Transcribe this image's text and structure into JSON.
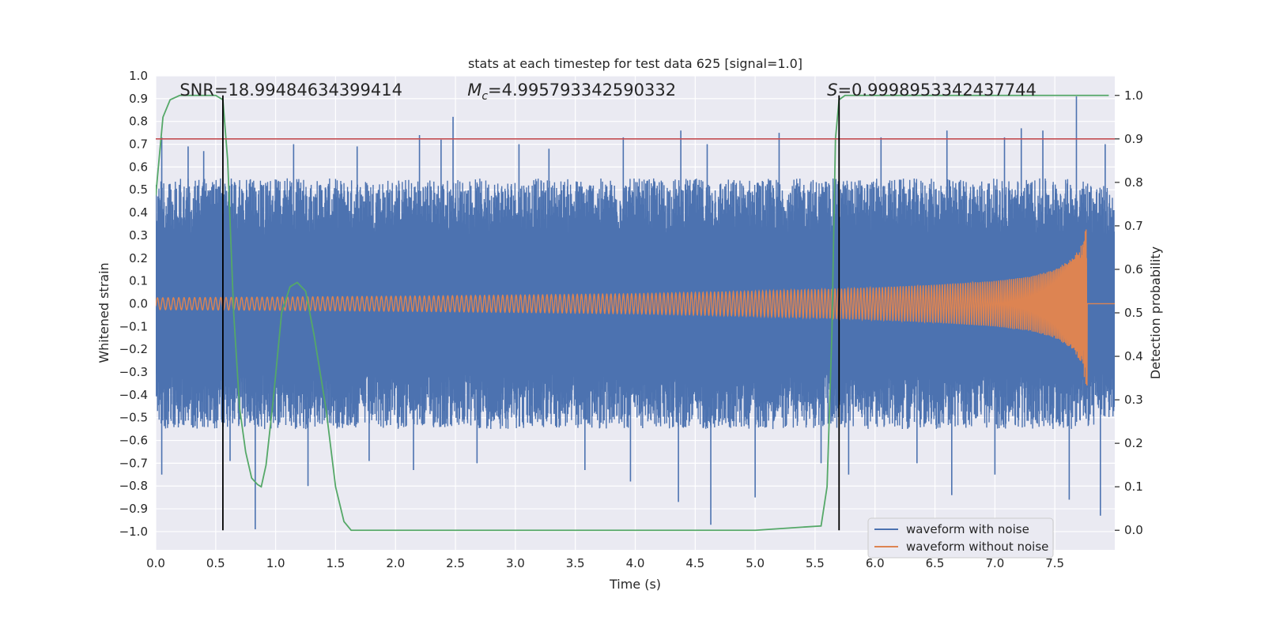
{
  "chart_data": {
    "type": "line",
    "title": "stats at each timestep for test data 625 [signal=1.0]",
    "xlabel": "Time (s)",
    "ylabel_left": "Whitened strain",
    "ylabel_right": "Detection probability",
    "xlim": [
      0.0,
      8.0
    ],
    "ylim_left": [
      -1.08,
      1.0
    ],
    "ylim_right": [
      -0.045,
      1.045
    ],
    "x_ticks": [
      "0.0",
      "0.5",
      "1.0",
      "1.5",
      "2.0",
      "2.5",
      "3.0",
      "3.5",
      "4.0",
      "4.5",
      "5.0",
      "5.5",
      "6.0",
      "6.5",
      "7.0",
      "7.5"
    ],
    "y_left_ticks": [
      "1.0",
      "0.9",
      "0.8",
      "0.7",
      "0.6",
      "0.5",
      "0.4",
      "0.3",
      "0.2",
      "0.1",
      "0.0",
      "−0.1",
      "−0.2",
      "−0.3",
      "−0.4",
      "−0.5",
      "−0.6",
      "−0.7",
      "−0.8",
      "−0.9",
      "−1.0"
    ],
    "y_right_ticks": [
      "1.0",
      "0.9",
      "0.8",
      "0.7",
      "0.6",
      "0.5",
      "0.4",
      "0.3",
      "0.2",
      "0.1",
      "0.0"
    ],
    "annotations": {
      "snr": "SNR=18.99484634399414",
      "mc_symbol": "M",
      "mc_sub": "c",
      "mc_value": "=4.995793342590332",
      "s_symbol": "S",
      "s_value": "=0.9998953342437744"
    },
    "threshold": 0.9,
    "vertical_lines_x": [
      0.56,
      5.7
    ],
    "signal_end_x": 7.77,
    "series": [
      {
        "name": "waveform with noise",
        "color": "#4c72b0",
        "axis": "left",
        "envelope_x": [
          0.0,
          1.0,
          2.0,
          3.0,
          4.0,
          5.0,
          6.0,
          7.0,
          7.5,
          7.77,
          8.0
        ],
        "envelope_low": [
          -0.55,
          -0.55,
          -0.55,
          -0.55,
          -0.55,
          -0.55,
          -0.55,
          -0.55,
          -0.55,
          -0.55,
          -0.5
        ],
        "envelope_high": [
          0.55,
          0.55,
          0.55,
          0.55,
          0.55,
          0.55,
          0.55,
          0.55,
          0.55,
          0.55,
          0.5
        ],
        "spikes_high": [
          [
            0.05,
            0.73
          ],
          [
            0.27,
            0.69
          ],
          [
            0.4,
            0.67
          ],
          [
            1.15,
            0.7
          ],
          [
            1.68,
            0.69
          ],
          [
            2.2,
            0.74
          ],
          [
            2.38,
            0.72
          ],
          [
            2.48,
            0.82
          ],
          [
            3.03,
            0.7
          ],
          [
            3.28,
            0.68
          ],
          [
            3.9,
            0.73
          ],
          [
            4.38,
            0.76
          ],
          [
            4.6,
            0.7
          ],
          [
            5.2,
            0.75
          ],
          [
            6.05,
            0.73
          ],
          [
            6.6,
            0.76
          ],
          [
            7.08,
            0.73
          ],
          [
            7.22,
            0.77
          ],
          [
            7.4,
            0.76
          ],
          [
            7.68,
            0.91
          ],
          [
            7.92,
            0.7
          ]
        ],
        "spikes_low": [
          [
            0.05,
            -0.75
          ],
          [
            0.62,
            -0.69
          ],
          [
            0.83,
            -0.99
          ],
          [
            1.27,
            -0.8
          ],
          [
            1.78,
            -0.69
          ],
          [
            2.15,
            -0.73
          ],
          [
            2.68,
            -0.7
          ],
          [
            3.58,
            -0.73
          ],
          [
            3.96,
            -0.78
          ],
          [
            4.36,
            -0.87
          ],
          [
            4.63,
            -0.97
          ],
          [
            5.0,
            -0.85
          ],
          [
            5.55,
            -0.7
          ],
          [
            5.78,
            -0.75
          ],
          [
            6.35,
            -0.7
          ],
          [
            6.64,
            -0.84
          ],
          [
            7.0,
            -0.75
          ],
          [
            7.62,
            -0.86
          ],
          [
            7.88,
            -0.93
          ]
        ]
      },
      {
        "name": "waveform without noise",
        "color": "#dd8452",
        "axis": "left",
        "chirp_tc": 7.77,
        "amplitude_x": [
          0.0,
          1.0,
          2.0,
          3.0,
          4.0,
          5.0,
          5.5,
          6.0,
          6.5,
          7.0,
          7.3,
          7.5,
          7.65,
          7.72,
          7.77
        ],
        "amplitude_y": [
          0.026,
          0.029,
          0.033,
          0.038,
          0.044,
          0.055,
          0.062,
          0.071,
          0.083,
          0.1,
          0.12,
          0.15,
          0.2,
          0.26,
          0.38
        ]
      },
      {
        "name": "detection probability",
        "color": "#55a868",
        "axis": "right",
        "x": [
          0.0,
          0.06,
          0.12,
          0.2,
          0.3,
          0.4,
          0.5,
          0.56,
          0.6,
          0.65,
          0.7,
          0.75,
          0.8,
          0.85,
          0.88,
          0.92,
          0.98,
          1.05,
          1.12,
          1.18,
          1.25,
          1.32,
          1.42,
          1.5,
          1.57,
          1.63,
          2.0,
          3.0,
          4.0,
          5.0,
          5.55,
          5.6,
          5.64,
          5.67,
          5.7,
          5.75,
          5.82,
          6.0,
          7.0,
          7.95
        ],
        "y": [
          0.77,
          0.95,
          0.99,
          1.0,
          1.0,
          1.0,
          1.0,
          0.99,
          0.85,
          0.5,
          0.28,
          0.18,
          0.12,
          0.105,
          0.1,
          0.15,
          0.3,
          0.5,
          0.56,
          0.57,
          0.55,
          0.45,
          0.28,
          0.1,
          0.02,
          0.0,
          0.0,
          0.0,
          0.0,
          0.0,
          0.01,
          0.1,
          0.45,
          0.9,
          0.99,
          1.0,
          1.0,
          1.0,
          1.0,
          1.0
        ]
      },
      {
        "name": "threshold",
        "color": "#c44e52",
        "axis": "right"
      }
    ],
    "legend": {
      "position": "lower-right",
      "entries": [
        "waveform with noise",
        "waveform without noise"
      ]
    }
  }
}
